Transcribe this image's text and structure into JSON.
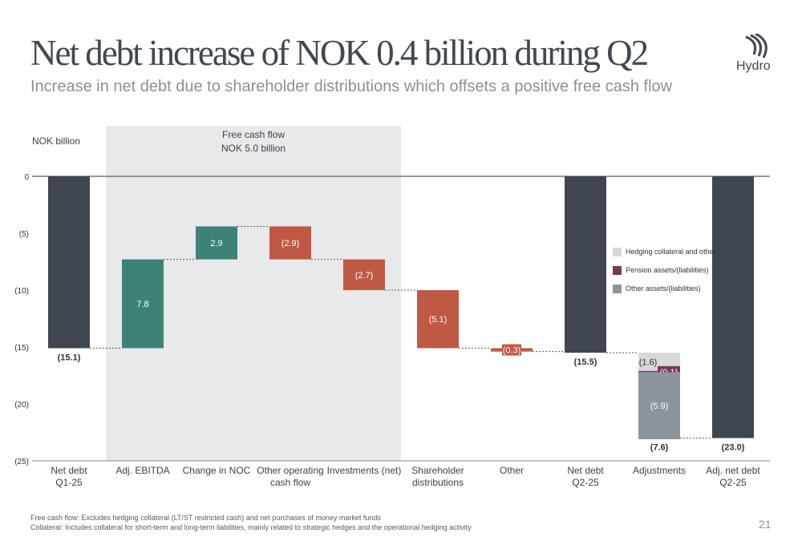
{
  "header": {
    "title": "Net debt increase of NOK 0.4 billion during Q2",
    "subtitle": "Increase in net debt due to shareholder distributions which offsets a positive free cash flow",
    "logo_text": "Hydro"
  },
  "footer": {
    "note1": "Free cash flow: Excludes hedging collateral (LT/ST restricted cash) and net purchases of money market funds",
    "note2": "Collateral: Includes collateral for short-term and long-term liabilities, mainly related to strategic hedges and the operational hedging activity",
    "page_number": "21"
  },
  "colors": {
    "total": "#40464f",
    "increase": "#3e8276",
    "decrease": "#bf5944",
    "hedging": "#d8d8d8",
    "pension": "#7a3856",
    "other_assets": "#8c949c",
    "highlight_band": "#e8e9eb"
  },
  "chart_data": {
    "type": "waterfall",
    "unit_label": "NOK billion",
    "ylim": [
      -25,
      0
    ],
    "y_ticks": [
      0,
      -5,
      -10,
      -15,
      -20,
      -25
    ],
    "y_tick_labels": [
      "0",
      "(5)",
      "(10)",
      "(15)",
      "(20)",
      "(25)"
    ],
    "highlight": {
      "label_line1": "Free cash flow",
      "label_line2": "NOK 5.0 billion",
      "from_category": 1,
      "to_category": 4
    },
    "categories": [
      [
        "Net debt",
        "Q1-25"
      ],
      [
        "Adj. EBITDA"
      ],
      [
        "Change in NOC"
      ],
      [
        "Other operating",
        "cash flow"
      ],
      [
        "Investments (net)"
      ],
      [
        "Shareholder",
        "distributions"
      ],
      [
        "Other"
      ],
      [
        "Net debt",
        "Q2-25"
      ],
      [
        "Adjustments"
      ],
      [
        "Adj. net debt",
        "Q2-25"
      ]
    ],
    "bars": [
      {
        "kind": "total",
        "from": 0,
        "to": -15.1,
        "label": "(15.1)",
        "label_pos": "below"
      },
      {
        "kind": "increase",
        "from": -15.1,
        "to": -7.3,
        "label": "7.8",
        "label_pos": "inside"
      },
      {
        "kind": "increase",
        "from": -7.3,
        "to": -4.4,
        "label": "2.9",
        "label_pos": "inside"
      },
      {
        "kind": "decrease",
        "from": -4.4,
        "to": -7.3,
        "label": "(2.9)",
        "label_pos": "inside"
      },
      {
        "kind": "decrease",
        "from": -7.3,
        "to": -10.0,
        "label": "(2.7)",
        "label_pos": "inside"
      },
      {
        "kind": "decrease",
        "from": -10.0,
        "to": -15.1,
        "label": "(5.1)",
        "label_pos": "inside"
      },
      {
        "kind": "decrease",
        "from": -15.1,
        "to": -15.4,
        "label": "(0.3)",
        "label_pos": "inside"
      },
      {
        "kind": "total",
        "from": 0,
        "to": -15.5,
        "label": "(15.5)",
        "label_pos": "below"
      },
      {
        "kind": "stacked",
        "from": -15.5,
        "to": -23.0,
        "label": "(7.6)",
        "label_pos": "below",
        "segments": [
          {
            "series": "hedging",
            "value": -1.6,
            "label": "(1.6)"
          },
          {
            "series": "pension",
            "value": -0.1,
            "label": "(0.1)"
          },
          {
            "series": "other_assets",
            "value": -5.9,
            "label": "(5.9)"
          }
        ]
      },
      {
        "kind": "total",
        "from": 0,
        "to": -23.0,
        "label": "(23.0)",
        "label_pos": "below"
      }
    ],
    "legend": [
      {
        "series": "hedging",
        "label": "Hedging collateral and other"
      },
      {
        "series": "pension",
        "label": "Pension assets/(liabilities)"
      },
      {
        "series": "other_assets",
        "label": "Other assets/(liabilities)"
      }
    ]
  }
}
